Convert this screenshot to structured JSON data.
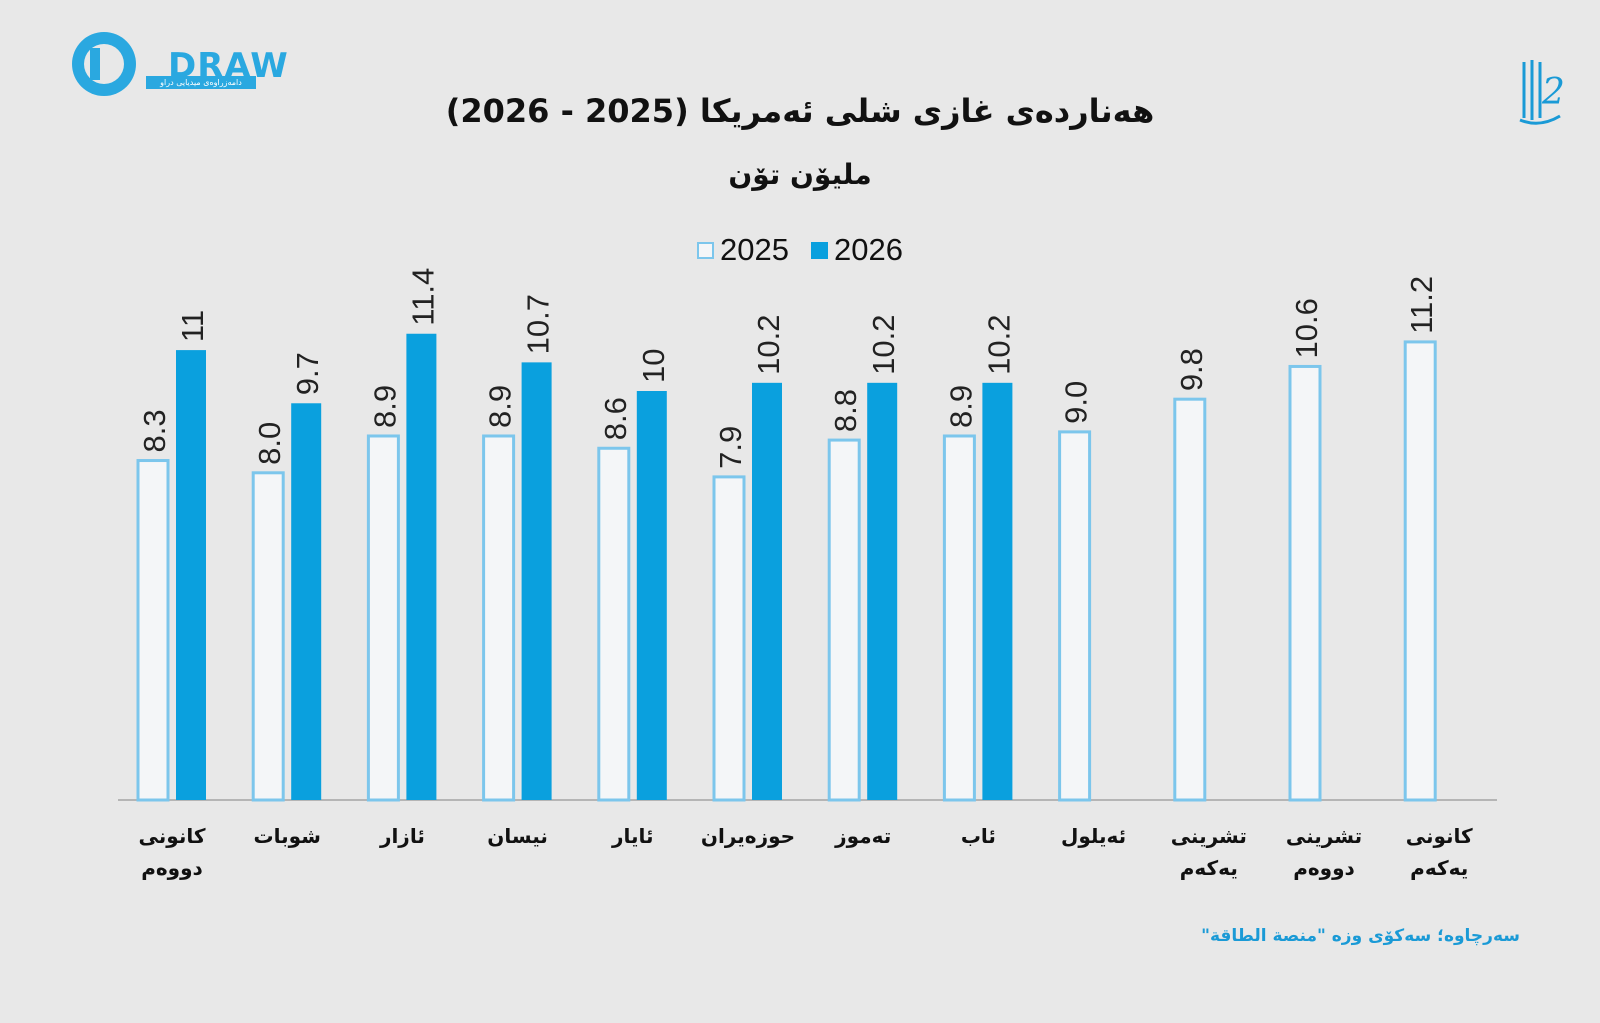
{
  "brand": {
    "logo_text": "DRAW",
    "logo_subtitle": "دامەزراوەی میدیایی دراو",
    "colors": {
      "primary": "#0aa0de",
      "light": "#f4f6f8",
      "outline": "#7cc6ec"
    }
  },
  "chart_data": {
    "type": "bar",
    "title": "هەناردەی غازی شلی ئەمریکا (2025 - 2026)",
    "subtitle": "ملیۆن تۆن",
    "xlabel": "",
    "ylabel": "",
    "ylim": [
      0,
      12
    ],
    "grid": false,
    "legend_position": "top-center",
    "categories": [
      [
        "کانونی",
        "دووەم"
      ],
      [
        "شوبات"
      ],
      [
        "ئازار"
      ],
      [
        "نیسان"
      ],
      [
        "ئایار"
      ],
      [
        "حوزەیران"
      ],
      [
        "تەموز"
      ],
      [
        "ئاب"
      ],
      [
        "ئەیلول"
      ],
      [
        "تشرینی",
        "یەکەم"
      ],
      [
        "تشرینی",
        "دووەم"
      ],
      [
        "کانونی",
        "یەکەم"
      ]
    ],
    "series": [
      {
        "name": "2025",
        "color": "#f4f6f8",
        "values": [
          8.3,
          8.0,
          8.9,
          8.9,
          8.6,
          7.9,
          8.8,
          8.9,
          9.0,
          9.8,
          10.6,
          11.2
        ],
        "labels": [
          "8.3",
          "8.0",
          "8.9",
          "8.9",
          "8.6",
          "7.9",
          "8.8",
          "8.9",
          "9.0",
          "9.8",
          "10.6",
          "11.2"
        ]
      },
      {
        "name": "2026",
        "color": "#0aa0de",
        "values": [
          11,
          9.7,
          11.4,
          10.7,
          10,
          10.2,
          10.2,
          10.2,
          null,
          null,
          null,
          null
        ],
        "labels": [
          "11",
          "9.7",
          "11.4",
          "10.7",
          "10",
          "10.2",
          "10.2",
          "10.2",
          null,
          null,
          null,
          null
        ]
      }
    ]
  },
  "source": "سەرچاوە؛ سەکۆی وزە \"منصة الطاقة\""
}
